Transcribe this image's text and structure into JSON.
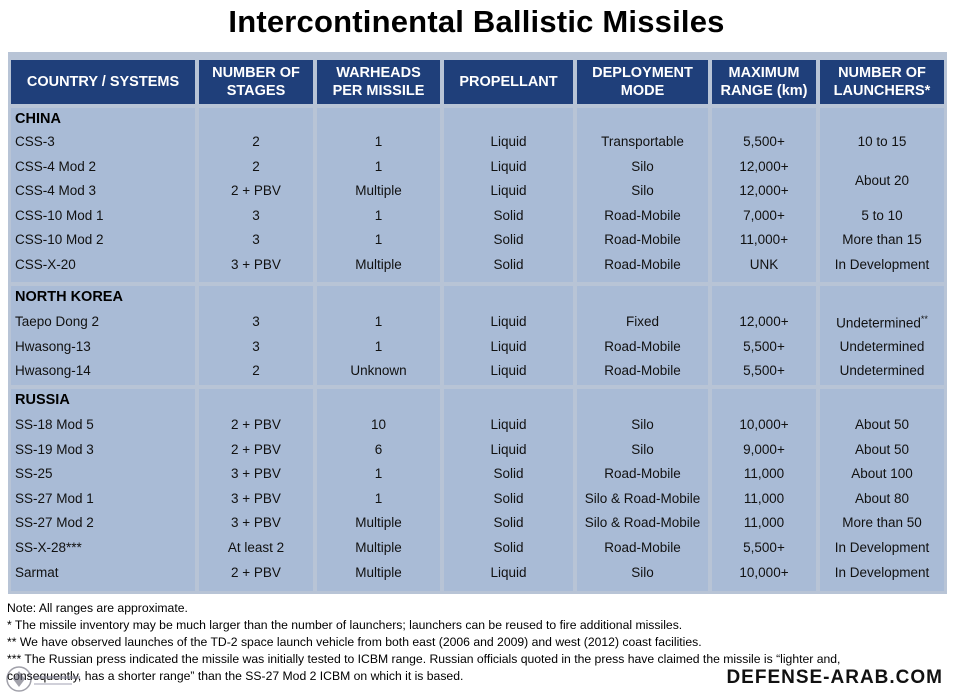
{
  "title": "Intercontinental Ballistic Missiles",
  "headers": {
    "country": "COUNTRY / SYSTEMS",
    "stages_1": "NUMBER OF",
    "stages_2": "STAGES",
    "warheads_1": "WARHEADS",
    "warheads_2": "PER MISSILE",
    "propellant": "PROPELLANT",
    "mode_1": "DEPLOYMENT",
    "mode_2": "MODE",
    "range_1": "MAXIMUM",
    "range_2": "RANGE (km)",
    "launchers_1": "NUMBER OF",
    "launchers_2": "LAUNCHERS*"
  },
  "sections": {
    "china": {
      "name": "CHINA",
      "rows": [
        {
          "system": "CSS-3",
          "stages": "2",
          "warheads": "1",
          "propellant": "Liquid",
          "mode": "Transportable",
          "range": "5,500+",
          "launchers": "10 to 15"
        },
        {
          "system": "CSS-4 Mod 2",
          "stages": "2",
          "warheads": "1",
          "propellant": "Liquid",
          "mode": "Silo",
          "range": "12,000+",
          "launchers": ""
        },
        {
          "system": "CSS-4 Mod 3",
          "stages": "2 + PBV",
          "warheads": "Multiple",
          "propellant": "Liquid",
          "mode": "Silo",
          "range": "12,000+",
          "launchers": ""
        },
        {
          "system": "CSS-10 Mod 1",
          "stages": "3",
          "warheads": "1",
          "propellant": "Solid",
          "mode": "Road-Mobile",
          "range": "7,000+",
          "launchers": "5 to 10"
        },
        {
          "system": "CSS-10 Mod 2",
          "stages": "3",
          "warheads": "1",
          "propellant": "Solid",
          "mode": "Road-Mobile",
          "range": "11,000+",
          "launchers": "More than 15"
        },
        {
          "system": "CSS-X-20",
          "stages": "3 + PBV",
          "warheads": "Multiple",
          "propellant": "Solid",
          "mode": "Road-Mobile",
          "range": "UNK",
          "launchers": "In Development"
        }
      ],
      "merged_launchers": "About 20"
    },
    "north_korea": {
      "name": "NORTH KOREA",
      "rows": [
        {
          "system": "Taepo Dong 2",
          "stages": "3",
          "warheads": "1",
          "propellant": "Liquid",
          "mode": "Fixed",
          "range": "12,000+",
          "launchers": "Undetermined",
          "sup": "**"
        },
        {
          "system": "Hwasong-13",
          "stages": "3",
          "warheads": "1",
          "propellant": "Liquid",
          "mode": "Road-Mobile",
          "range": "5,500+",
          "launchers": "Undetermined"
        },
        {
          "system": "Hwasong-14",
          "stages": "2",
          "warheads": "Unknown",
          "propellant": "Liquid",
          "mode": "Road-Mobile",
          "range": "5,500+",
          "launchers": "Undetermined"
        }
      ]
    },
    "russia": {
      "name": "RUSSIA",
      "rows": [
        {
          "system": "SS-18 Mod 5",
          "stages": "2 + PBV",
          "warheads": "10",
          "propellant": "Liquid",
          "mode": "Silo",
          "range": "10,000+",
          "launchers": "About 50"
        },
        {
          "system": "SS-19 Mod 3",
          "stages": "2 + PBV",
          "warheads": "6",
          "propellant": "Liquid",
          "mode": "Silo",
          "range": "9,000+",
          "launchers": "About 50"
        },
        {
          "system": "SS-25",
          "stages": "3 + PBV",
          "warheads": "1",
          "propellant": "Solid",
          "mode": "Road-Mobile",
          "range": "11,000",
          "launchers": "About 100"
        },
        {
          "system": "SS-27 Mod 1",
          "stages": "3 + PBV",
          "warheads": "1",
          "propellant": "Solid",
          "mode": "Silo & Road-Mobile",
          "range": "11,000",
          "launchers": "About 80"
        },
        {
          "system": "SS-27 Mod 2",
          "stages": "3 + PBV",
          "warheads": "Multiple",
          "propellant": "Solid",
          "mode": "Silo & Road-Mobile",
          "range": "11,000",
          "launchers": "More than 50"
        },
        {
          "system": "SS-X-28***",
          "stages": "At least 2",
          "warheads": "Multiple",
          "propellant": "Solid",
          "mode": "Road-Mobile",
          "range": "5,500+",
          "launchers": "In Development"
        },
        {
          "system": "Sarmat",
          "stages": "2 + PBV",
          "warheads": "Multiple",
          "propellant": "Liquid",
          "mode": "Silo",
          "range": "10,000+",
          "launchers": "In Development"
        }
      ]
    }
  },
  "notes": {
    "n0": "Note: All ranges are approximate.",
    "n1": "* The missile inventory may be much larger than the number of launchers; launchers can be reused to fire additional missiles.",
    "n2": "** We have observed launches of the TD-2 space launch vehicle from both east (2006 and 2009) and west (2012) coast facilities.",
    "n3": "*** The Russian press indicated the missile was initially tested to ICBM range. Russian officials quoted in the press have claimed the missile is “lighter and,",
    "n4": "consequently, has a shorter range” than the SS-27 Mod 2 ICBM on which it is based."
  },
  "watermark": "DEFENSE-ARAB.COM",
  "colors": {
    "header": "#1f3f7a",
    "column": "#a9bbd6",
    "gap": "#b8c4d6"
  }
}
